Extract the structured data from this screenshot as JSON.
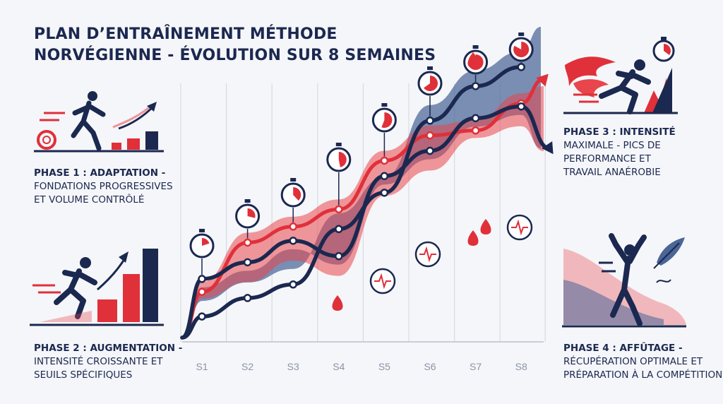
{
  "title_lines": [
    "Plan d’entraînement méthode",
    "norvégienne - évolution sur 8 semaines"
  ],
  "phases": [
    {
      "title": "Phase 1 : Adaptation -",
      "lines": [
        "fondations progressives",
        "et volume contrôlé"
      ]
    },
    {
      "title": "Phase 2 : Augmentation -",
      "lines": [
        "intensité croissante et",
        "seuils spécifiques"
      ]
    },
    {
      "title": "Phase 3 : Intensité",
      "lines": [
        "maximale - pics de",
        "performance et",
        "travail anaérobie"
      ]
    },
    {
      "title": "Phase 4 : Affûtage -",
      "lines": [
        "récupération optimale et",
        "préparation à la compétition"
      ]
    }
  ],
  "colors": {
    "navy": "#1b2850",
    "red": "#e0303a",
    "blue_fill": "#4a6596",
    "red_fill": "#e8454c",
    "grid": "#d8dbe3"
  },
  "icons": [
    "stopwatch-icon",
    "blood-drop-icon",
    "heartbeat-icon",
    "runner-icon",
    "sprinter-icon",
    "celebrating-athlete-icon",
    "feather-icon"
  ],
  "chart_data": {
    "type": "line",
    "categories": [
      "S1",
      "S2",
      "S3",
      "S4",
      "S5",
      "S6",
      "S7",
      "S8"
    ],
    "series": [
      {
        "values": [
          0.72,
          1.52,
          1.78,
          2.06,
          2.85,
          3.26,
          3.34,
          3.78
        ],
        "color": "#e0303a"
      },
      {
        "values": [
          0.32,
          0.62,
          0.84,
          1.74,
          2.33,
          3.5,
          4.06,
          4.37
        ],
        "color": "#1b2850"
      },
      {
        "values": [
          0.93,
          1.2,
          1.55,
          1.3,
          2.6,
          3.01,
          3.54,
          3.73
        ],
        "color": "#1b2850"
      }
    ],
    "ylim": [
      0,
      5
    ],
    "stopwatch_weeks": [
      "S1",
      "S2",
      "S3",
      "S4",
      "S5",
      "S6",
      "S7",
      "S8"
    ]
  }
}
